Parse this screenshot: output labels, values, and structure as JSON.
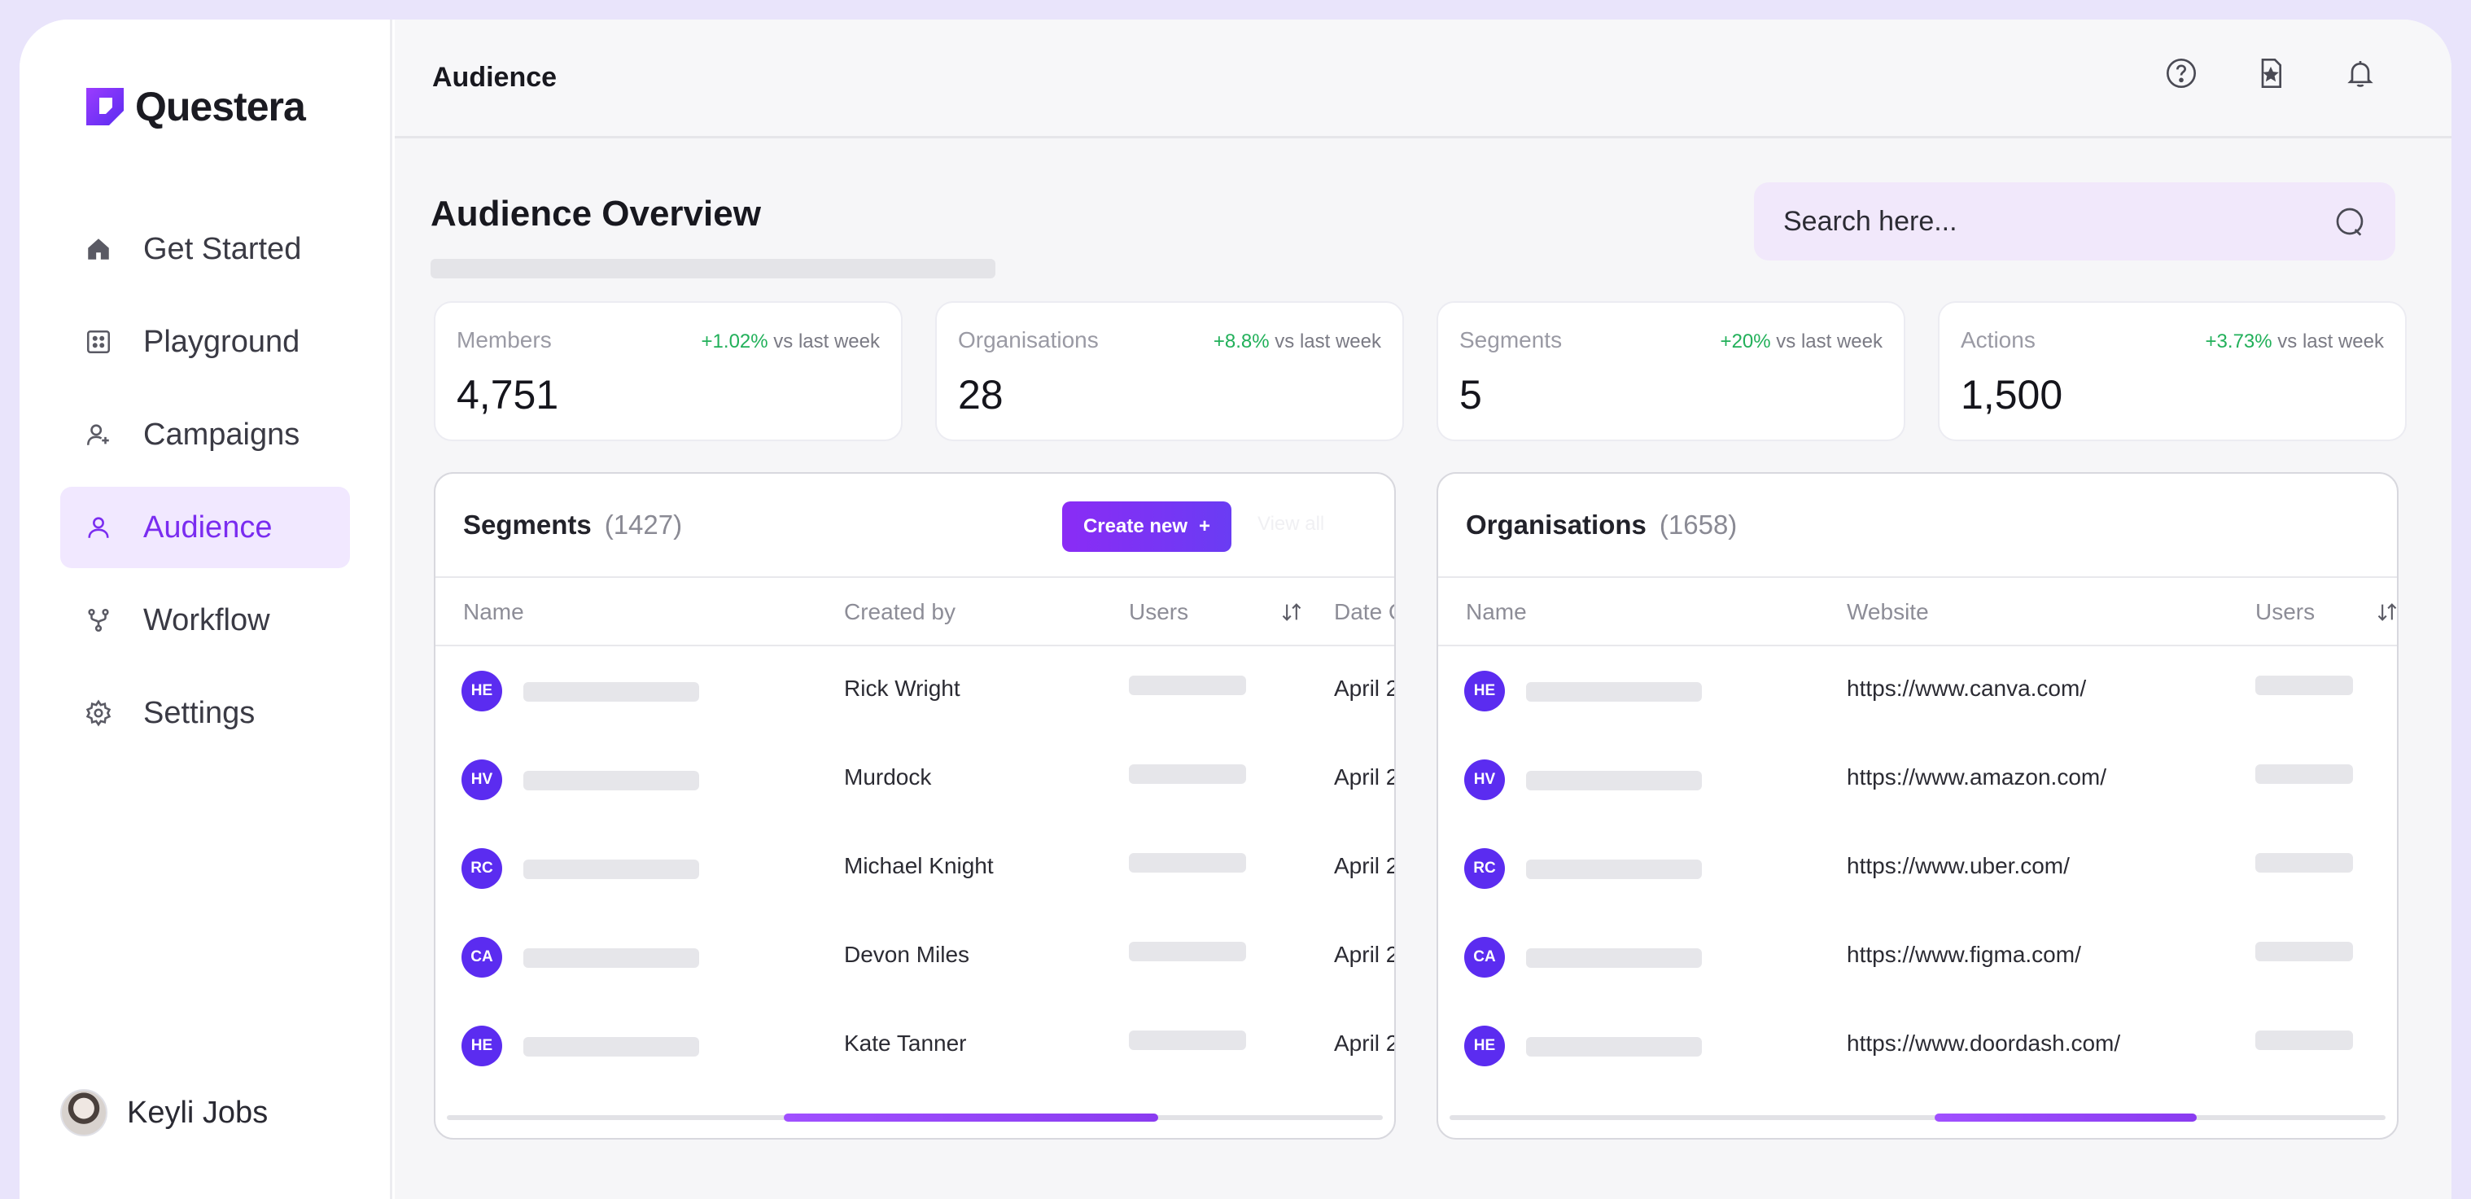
{
  "app": {
    "name": "Questera"
  },
  "nav": [
    {
      "label": "Get Started",
      "icon": "home-icon"
    },
    {
      "label": "Playground",
      "icon": "grid-icon"
    },
    {
      "label": "Campaigns",
      "icon": "user-plus-icon"
    },
    {
      "label": "Audience",
      "icon": "user-icon",
      "active": true
    },
    {
      "label": "Workflow",
      "icon": "workflow-icon"
    },
    {
      "label": "Settings",
      "icon": "gear-icon"
    }
  ],
  "user": {
    "name": "Keyli Jobs"
  },
  "header": {
    "title": "Audience",
    "icons": [
      "help-icon",
      "bookmark-icon",
      "bell-icon"
    ]
  },
  "page": {
    "title": "Audience Overview"
  },
  "search": {
    "placeholder": "Search here..."
  },
  "stats": [
    {
      "label": "Members",
      "delta": "+1.02%",
      "suffix": "vs last week",
      "value": "4,751"
    },
    {
      "label": "Organisations",
      "delta": "+8.8%",
      "suffix": "vs last week",
      "value": "28"
    },
    {
      "label": "Segments",
      "delta": "+20%",
      "suffix": "vs last week",
      "value": "5"
    },
    {
      "label": "Actions",
      "delta": "+3.73%",
      "suffix": "vs last week",
      "value": "1,500"
    }
  ],
  "segments": {
    "title": "Segments",
    "count": "(1427)",
    "create_label": "Create new",
    "view_all_label": "View all",
    "columns": [
      "Name",
      "Created by",
      "Users",
      "Date C"
    ],
    "rows": [
      {
        "initials": "HE",
        "created_by": "Rick Wright",
        "date": "April 2"
      },
      {
        "initials": "HV",
        "created_by": "Murdock",
        "date": "April 2"
      },
      {
        "initials": "RC",
        "created_by": "Michael Knight",
        "date": "April 2"
      },
      {
        "initials": "CA",
        "created_by": "Devon Miles",
        "date": "April 2"
      },
      {
        "initials": "HE",
        "created_by": "Kate Tanner",
        "date": "April 2"
      }
    ],
    "scroll_position": 0.6
  },
  "organisations": {
    "title": "Organisations",
    "count": "(1658)",
    "columns": [
      "Name",
      "Website",
      "Users"
    ],
    "rows": [
      {
        "initials": "HE",
        "website": "https://www.canva.com/"
      },
      {
        "initials": "HV",
        "website": "https://www.amazon.com/"
      },
      {
        "initials": "RC",
        "website": "https://www.uber.com/"
      },
      {
        "initials": "CA",
        "website": "https://www.figma.com/"
      },
      {
        "initials": "HE",
        "website": "https://www.doordash.com/"
      }
    ],
    "scroll_position": 0.72
  }
}
